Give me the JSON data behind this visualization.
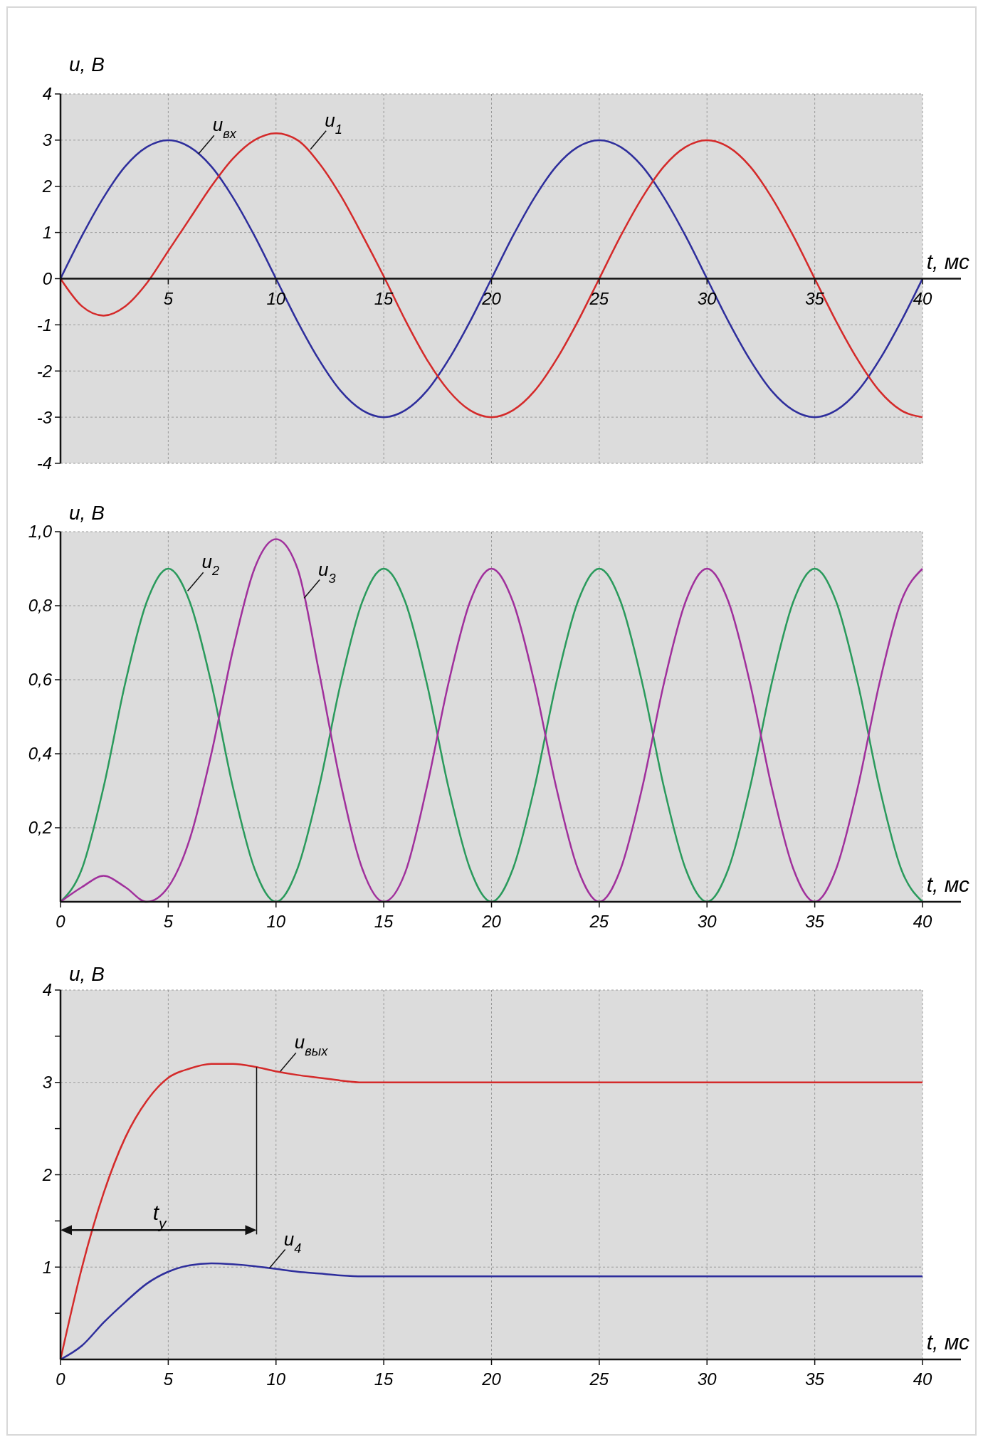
{
  "chart_data": [
    {
      "type": "line",
      "xlabel": "t, мс",
      "ylabel": "u, В",
      "xlim": [
        0,
        40
      ],
      "ylim": [
        -4,
        4
      ],
      "xticks": [
        {
          "value": 0,
          "label": null
        },
        5,
        10,
        15,
        20,
        25,
        30,
        35,
        40
      ],
      "yticks": [
        -4,
        -3,
        -2,
        -1,
        0,
        1,
        2,
        3,
        4
      ],
      "grid": true,
      "series": [
        {
          "color": "#2e2e9c",
          "x": [
            0,
            1,
            2,
            3,
            4,
            5,
            6,
            7,
            8,
            9,
            10,
            11,
            12,
            13,
            14,
            15,
            16,
            17,
            18,
            19,
            20,
            21,
            22,
            23,
            24,
            25,
            26,
            27,
            28,
            29,
            30,
            31,
            32,
            33,
            34,
            35,
            36,
            37,
            38,
            39,
            40
          ],
          "values": [
            0,
            0.93,
            1.76,
            2.43,
            2.85,
            3,
            2.85,
            2.43,
            1.76,
            0.93,
            0,
            -0.93,
            -1.76,
            -2.43,
            -2.85,
            -3,
            -2.85,
            -2.43,
            -1.76,
            -0.93,
            0,
            0.93,
            1.76,
            2.43,
            2.85,
            3,
            2.85,
            2.43,
            1.76,
            0.93,
            0,
            -0.93,
            -1.76,
            -2.43,
            -2.85,
            -3,
            -2.85,
            -2.43,
            -1.76,
            -0.93,
            0
          ]
        },
        {
          "color": "#d42a2a",
          "x": [
            0,
            1,
            2,
            3,
            4,
            5,
            6,
            7,
            8,
            9,
            10,
            11,
            12,
            13,
            14,
            15,
            16,
            17,
            18,
            19,
            20,
            21,
            22,
            23,
            24,
            25,
            26,
            27,
            28,
            29,
            30,
            31,
            32,
            33,
            34,
            35,
            36,
            37,
            38,
            39,
            40
          ],
          "values": [
            0,
            -0.6,
            -0.8,
            -0.6,
            -0.1,
            0.6,
            1.3,
            2,
            2.6,
            3,
            3.15,
            3,
            2.5,
            1.8,
            0.95,
            0.05,
            -0.9,
            -1.75,
            -2.42,
            -2.85,
            -3,
            -2.85,
            -2.43,
            -1.76,
            -0.93,
            0,
            0.93,
            1.76,
            2.43,
            2.85,
            3,
            2.85,
            2.43,
            1.76,
            0.93,
            0,
            -0.93,
            -1.76,
            -2.43,
            -2.85,
            -3
          ]
        }
      ],
      "annotations": [
        {
          "text": "u$_{вх}$",
          "x": 6.4,
          "y": 2.7
        },
        {
          "text": "u$_{1}$",
          "x": 11.6,
          "y": 2.8
        }
      ]
    },
    {
      "type": "line",
      "xlabel": "t, мс",
      "ylabel": "u, В",
      "xlim": [
        0,
        40
      ],
      "ylim": [
        0,
        1
      ],
      "xticks": [
        0,
        5,
        10,
        15,
        20,
        25,
        30,
        35,
        40
      ],
      "yticks": [
        {
          "value": 0.2,
          "label": "0,2"
        },
        {
          "value": 0.4,
          "label": "0,4"
        },
        {
          "value": 0.6,
          "label": "0,6"
        },
        {
          "value": 0.8,
          "label": "0,8"
        },
        {
          "value": 1,
          "label": "1,0"
        }
      ],
      "grid": true,
      "series": [
        {
          "color": "#2a9a5c",
          "x": [
            0,
            1,
            2,
            3,
            4,
            5,
            6,
            7,
            8,
            9,
            10,
            11,
            12,
            13,
            14,
            15,
            16,
            17,
            18,
            19,
            20,
            21,
            22,
            23,
            24,
            25,
            26,
            27,
            28,
            29,
            30,
            31,
            32,
            33,
            34,
            35,
            36,
            37,
            38,
            39,
            40
          ],
          "values": [
            0,
            0.09,
            0.31,
            0.59,
            0.81,
            0.9,
            0.81,
            0.59,
            0.31,
            0.09,
            0,
            0.09,
            0.31,
            0.59,
            0.81,
            0.9,
            0.81,
            0.59,
            0.31,
            0.09,
            0,
            0.09,
            0.31,
            0.59,
            0.81,
            0.9,
            0.81,
            0.59,
            0.31,
            0.09,
            0,
            0.09,
            0.31,
            0.59,
            0.81,
            0.9,
            0.81,
            0.59,
            0.31,
            0.09,
            0
          ]
        },
        {
          "color": "#a0309c",
          "x": [
            0,
            1,
            2,
            3,
            4,
            5,
            6,
            7,
            8,
            9,
            10,
            11,
            12,
            13,
            14,
            15,
            16,
            17,
            18,
            19,
            20,
            21,
            22,
            23,
            24,
            25,
            26,
            27,
            28,
            29,
            30,
            31,
            32,
            33,
            34,
            35,
            36,
            37,
            38,
            39,
            40
          ],
          "values": [
            0,
            0.04,
            0.07,
            0.04,
            0,
            0.04,
            0.17,
            0.4,
            0.68,
            0.9,
            0.98,
            0.9,
            0.62,
            0.32,
            0.09,
            0,
            0.08,
            0.31,
            0.59,
            0.81,
            0.9,
            0.81,
            0.59,
            0.31,
            0.09,
            0,
            0.09,
            0.31,
            0.59,
            0.81,
            0.9,
            0.81,
            0.59,
            0.31,
            0.09,
            0,
            0.09,
            0.31,
            0.59,
            0.81,
            0.9
          ]
        }
      ],
      "annotations": [
        {
          "text": "u$_{2}$",
          "x": 5.9,
          "y": 0.84
        },
        {
          "text": "u$_{3}$",
          "x": 11.3,
          "y": 0.82
        }
      ]
    },
    {
      "type": "line",
      "xlabel": "t, мс",
      "ylabel": "u, В",
      "xlim": [
        0,
        40
      ],
      "ylim": [
        0,
        4
      ],
      "xticks": [
        0,
        5,
        10,
        15,
        20,
        25,
        30,
        35,
        40
      ],
      "yticks": [
        {
          "value": 0.5,
          "label": null
        },
        1,
        {
          "value": 1.5,
          "label": null
        },
        2,
        {
          "value": 2.5,
          "label": null
        },
        3,
        {
          "value": 3.5,
          "label": null
        },
        4
      ],
      "grid": true,
      "series": [
        {
          "color": "#d42a2a",
          "x": [
            0,
            1,
            2,
            3,
            4,
            5,
            6,
            7,
            8,
            9,
            10,
            11,
            12,
            13,
            14,
            15,
            20,
            25,
            30,
            35,
            40
          ],
          "values": [
            0,
            1,
            1.8,
            2.4,
            2.8,
            3.05,
            3.15,
            3.2,
            3.2,
            3.17,
            3.12,
            3.08,
            3.05,
            3.02,
            3,
            3,
            3,
            3,
            3,
            3,
            3
          ]
        },
        {
          "color": "#2e2e9c",
          "x": [
            0,
            1,
            2,
            3,
            4,
            5,
            6,
            7,
            8,
            9,
            10,
            11,
            12,
            13,
            14,
            15,
            20,
            25,
            30,
            35,
            40
          ],
          "values": [
            0,
            0.15,
            0.4,
            0.62,
            0.82,
            0.95,
            1.02,
            1.04,
            1.03,
            1.01,
            0.98,
            0.95,
            0.93,
            0.91,
            0.9,
            0.9,
            0.9,
            0.9,
            0.9,
            0.9,
            0.9
          ]
        }
      ],
      "annotations": [
        {
          "text": "u$_{вых}$",
          "x": 10.2,
          "y": 3.12
        },
        {
          "text": "u$_{4}$",
          "x": 9.7,
          "y": 0.99
        }
      ],
      "ref_lines": [
        {
          "axis": "x",
          "value": 9.1,
          "label": "t$_{у}$"
        }
      ]
    }
  ]
}
